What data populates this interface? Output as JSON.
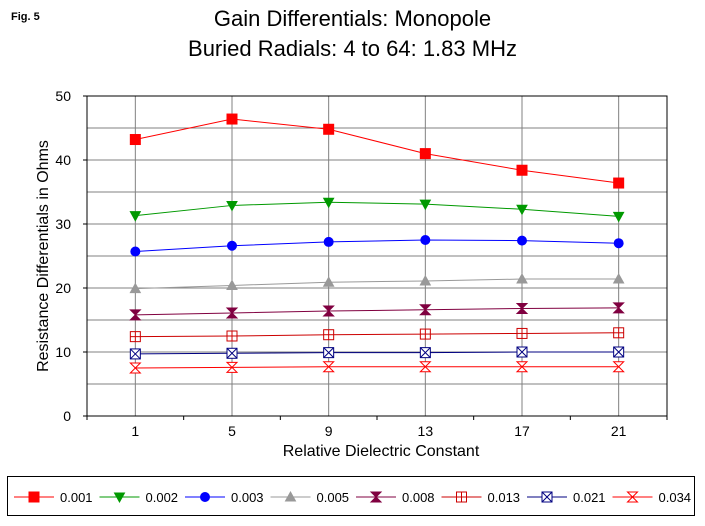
{
  "figure_label": "Fig. 5",
  "chart_data": {
    "type": "line",
    "title": [
      "Gain Differentials: Monopole",
      "Buried Radials:  4 to 64: 1.83 MHz"
    ],
    "xlabel": "Relative Dielectric Constant",
    "ylabel": "Resistance Differentials in Ohms",
    "categories": [
      "1",
      "5",
      "9",
      "13",
      "17",
      "21"
    ],
    "ylim": [
      0,
      50
    ],
    "yticks": [
      0,
      10,
      20,
      30,
      40,
      50
    ],
    "grid": true,
    "legend_position": "bottom",
    "series": [
      {
        "name": "0.001",
        "color": "#ff0000",
        "marker": "square-filled",
        "values": [
          43.2,
          46.4,
          44.8,
          41.0,
          38.4,
          36.4
        ]
      },
      {
        "name": "0.002",
        "color": "#009900",
        "marker": "triangle-down-filled",
        "values": [
          31.3,
          32.9,
          33.4,
          33.1,
          32.3,
          31.2
        ]
      },
      {
        "name": "0.003",
        "color": "#0000ff",
        "marker": "circle-filled",
        "values": [
          25.7,
          26.6,
          27.2,
          27.5,
          27.4,
          27.0
        ]
      },
      {
        "name": "0.005",
        "color": "#999999",
        "marker": "triangle-up-filled",
        "values": [
          19.9,
          20.4,
          20.9,
          21.1,
          21.4,
          21.4
        ]
      },
      {
        "name": "0.008",
        "color": "#800040",
        "marker": "hourglass",
        "values": [
          15.8,
          16.1,
          16.4,
          16.6,
          16.8,
          16.9
        ]
      },
      {
        "name": "0.013",
        "color": "#cc0000",
        "marker": "square-plus",
        "values": [
          12.4,
          12.5,
          12.7,
          12.8,
          12.9,
          13.0
        ]
      },
      {
        "name": "0.021",
        "color": "#000080",
        "marker": "square-x",
        "values": [
          9.7,
          9.8,
          9.9,
          9.9,
          10.0,
          10.0
        ]
      },
      {
        "name": "0.034",
        "color": "#ff0000",
        "marker": "hourglass-outline",
        "values": [
          7.5,
          7.6,
          7.7,
          7.7,
          7.7,
          7.7
        ]
      }
    ]
  }
}
